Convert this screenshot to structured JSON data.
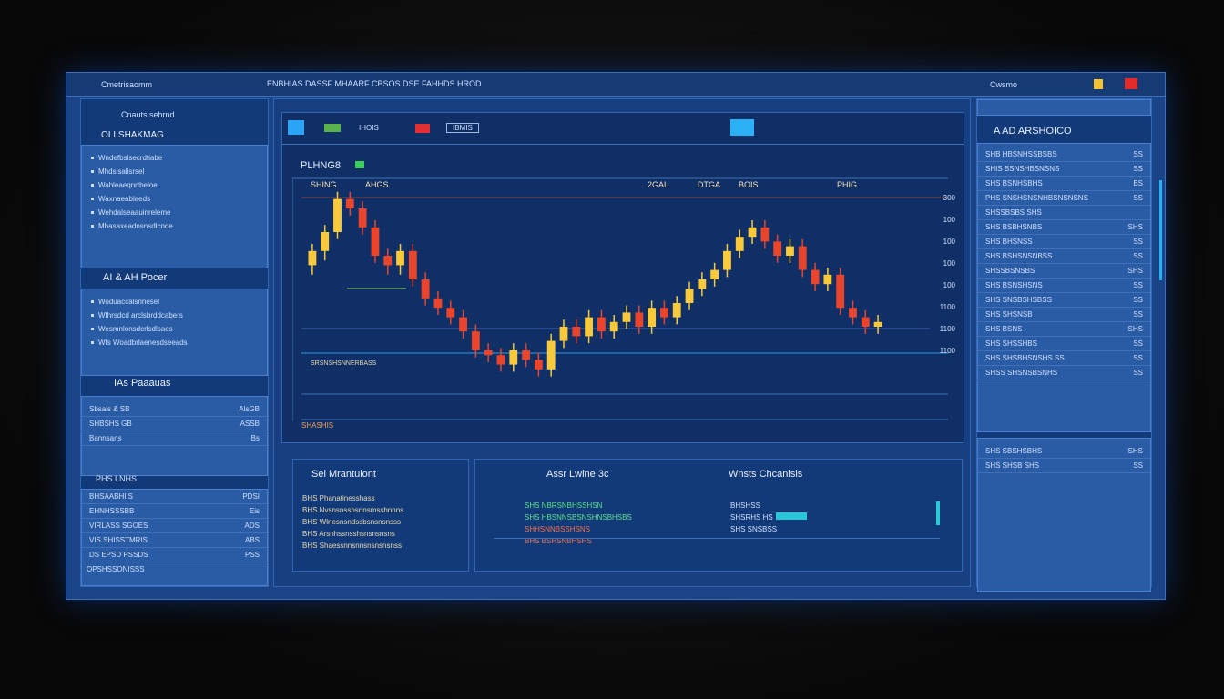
{
  "window": {
    "title": "Cmetrisaomm",
    "menu": "ENBHIAS DASSF MHAARF CBSOS DSE FAHHDS HROD",
    "account": "Cwsmo"
  },
  "left_panel": {
    "header": "Cnauts sehrnd",
    "section1": "OI LSHAKMAG",
    "list1": [
      "Wndefbslsecrdtiabe",
      "Mhdslsalisrsel",
      "Wahleaeqnrtbeloe",
      "Waxnaeablaeds",
      "Wehdalseaauinreleme",
      "Mhasaxeadnsnsdlcnde"
    ],
    "section2": "AI & AH Pocer",
    "list2": [
      "Woduaccalsnnesel",
      "Wfhrsdcd arclsbrddcabers",
      "Wesmnlonsdcrlsdlsaes",
      "Wfs Woadbrlaenesdseeads"
    ],
    "section3": "IAs Paaauas",
    "list3": [
      {
        "label": "Sbsais & SB",
        "value": "AlsGB"
      },
      {
        "label": "SHBSHS GB",
        "value": "ASSB"
      },
      {
        "label": "Bannsans",
        "value": "Bs"
      }
    ],
    "section4": "PHS LNHS",
    "table": [
      {
        "label": "BHSAABHIIS",
        "value": "PDSI"
      },
      {
        "label": "EHNHSSSBB",
        "value": "Eis"
      },
      {
        "label": "VIRLASS SGOES",
        "value": "ADS"
      },
      {
        "label": "VIS SHISSTMRIS",
        "value": "ABS"
      },
      {
        "label": "DS EPSD PSSDS",
        "value": "PSS"
      }
    ],
    "footer": "OPSHSSONISSS"
  },
  "toolbar": {
    "buttons": [
      "IHOIS",
      "IBMIS"
    ]
  },
  "chart": {
    "type": "candlestick",
    "symbol": "PLHNG8",
    "header_labels": [
      "SHING",
      "AHGS",
      "2GAL",
      "DTGA",
      "BOIS",
      "PHIG"
    ],
    "price_labels": [
      "300",
      "100",
      "100",
      "100",
      "100",
      "1100",
      "1100",
      "1100"
    ],
    "annotations": [
      "SHASHIS",
      "SRSNSHSNNERBASS"
    ],
    "up_color": "#f7c93b",
    "down_color": "#e8452c",
    "ylim": [
      0,
      100
    ],
    "open": [
      66,
      72,
      80,
      94,
      90,
      82,
      70,
      66,
      72,
      60,
      52,
      48,
      44,
      38,
      30,
      28,
      24,
      30,
      26,
      22,
      34,
      40,
      36,
      44,
      38,
      42,
      46,
      40,
      48,
      44,
      50,
      56,
      60,
      64,
      72,
      78,
      82,
      76,
      70,
      74,
      64,
      58,
      62,
      48,
      44,
      40
    ],
    "close": [
      72,
      80,
      94,
      90,
      82,
      70,
      66,
      72,
      60,
      52,
      48,
      44,
      38,
      30,
      28,
      24,
      30,
      26,
      22,
      34,
      40,
      36,
      44,
      38,
      42,
      46,
      40,
      48,
      44,
      50,
      56,
      60,
      64,
      72,
      78,
      82,
      76,
      70,
      74,
      64,
      58,
      62,
      48,
      44,
      40,
      42
    ],
    "high": [
      75,
      83,
      97,
      97,
      93,
      85,
      73,
      75,
      75,
      63,
      55,
      51,
      47,
      41,
      33,
      31,
      33,
      33,
      29,
      37,
      43,
      43,
      47,
      47,
      45,
      49,
      49,
      51,
      51,
      53,
      59,
      63,
      67,
      75,
      81,
      85,
      85,
      79,
      77,
      77,
      67,
      65,
      65,
      51,
      47,
      45
    ],
    "low": [
      62,
      68,
      77,
      87,
      79,
      67,
      62,
      62,
      57,
      49,
      45,
      41,
      35,
      27,
      25,
      21,
      21,
      23,
      19,
      19,
      31,
      33,
      33,
      35,
      35,
      39,
      37,
      37,
      41,
      41,
      47,
      53,
      57,
      61,
      69,
      75,
      73,
      67,
      67,
      61,
      55,
      55,
      45,
      41,
      37,
      37
    ]
  },
  "bottom": {
    "panel1": {
      "title": "Sei Mrantuiont",
      "lines": [
        "BHS Phanatinesshass",
        "BHS Nvsnsnsshsnnsmsshnnns",
        "BHS Wlnesnsndssbsnsnsnsss",
        "BHS Arsnhssnsshsnsnsnsns",
        "BHS Shaessnnsnnsnsnsnsnss"
      ]
    },
    "panel2": {
      "title": "Assr Lwine 3c",
      "lines": [
        "SHS NBRSNBHSSHSN",
        "SHS HBSNNSBSNSHNSBHSBS",
        "SHHSNNBSSHSNS",
        "BHS BSHSNBHSHS"
      ]
    },
    "panel3": {
      "title": "Wnsts Chcanisis",
      "lines": [
        "BHSHSS",
        "SHSRHS HS",
        "SHS SNSBSS"
      ]
    }
  },
  "right_panel": {
    "header": "A AD ARSHOICO",
    "items": [
      {
        "label": "SHB HBSNHSSBSBS",
        "value": "SS"
      },
      {
        "label": "SHIS BSNSHBSNSNS",
        "value": "SS"
      },
      {
        "label": "SHS BSNHSBHS",
        "value": "BS"
      },
      {
        "label": "PHS SNSHSNSNHBSNSNSNS",
        "value": "SS"
      },
      {
        "label": "SHSSBSBS SHS",
        "value": ""
      },
      {
        "label": "SHS BSBHSNBS",
        "value": "SHS"
      },
      {
        "label": "SHS BHSNSS",
        "value": "SS"
      },
      {
        "label": "SHS BSHSNSNBSS",
        "value": "SS"
      },
      {
        "label": "SHSSBSNSBS",
        "value": "SHS"
      },
      {
        "label": "SHS BSNSHSNS",
        "value": "SS"
      },
      {
        "label": "SHS SNSBSHSBSS",
        "value": "SS"
      },
      {
        "label": "SHS SHSNSB",
        "value": "SS"
      },
      {
        "label": "SHS BSNS",
        "value": "SHS"
      },
      {
        "label": "SHS SHSSHBS",
        "value": "SS"
      },
      {
        "label": "SHS SHSBHSNSHS SS",
        "value": "SS"
      },
      {
        "label": "SHSS SHSNSBSNHS",
        "value": "SS"
      }
    ],
    "footer_items": [
      {
        "label": "SHS SBSHSBHS",
        "value": "SHS"
      },
      {
        "label": "SHS SHSB SHS",
        "value": "SS"
      }
    ]
  }
}
